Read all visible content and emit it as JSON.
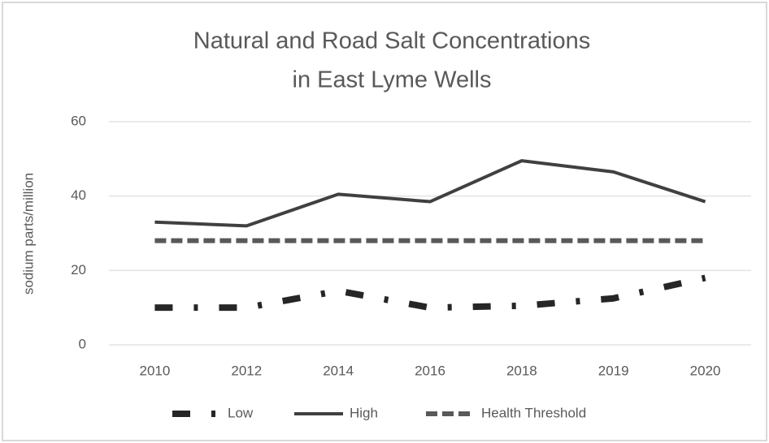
{
  "chart_data": {
    "type": "line",
    "title": [
      "Natural and Road Salt Concentrations",
      "in East Lyme Wells"
    ],
    "y_label": "sodium parts/million",
    "categories": [
      "2010",
      "2012",
      "2014",
      "2016",
      "2018",
      "2019",
      "2020"
    ],
    "series": [
      {
        "name": "Low",
        "color": "#262626",
        "dash": "dash-dot",
        "values": [
          10,
          10,
          14.5,
          10,
          10.5,
          12.5,
          18
        ]
      },
      {
        "name": "High",
        "color": "#404040",
        "dash": "solid",
        "values": [
          33,
          32,
          40.5,
          38.5,
          49.5,
          46.5,
          38.5
        ]
      },
      {
        "name": "Health Threshold",
        "color": "#595959",
        "dash": "dashed",
        "values": [
          28,
          28,
          28,
          28,
          28,
          28,
          28
        ]
      }
    ],
    "ylim": [
      0,
      60
    ],
    "yticks": [
      0,
      20,
      40,
      60
    ],
    "grid": true,
    "legend": "bottom"
  }
}
